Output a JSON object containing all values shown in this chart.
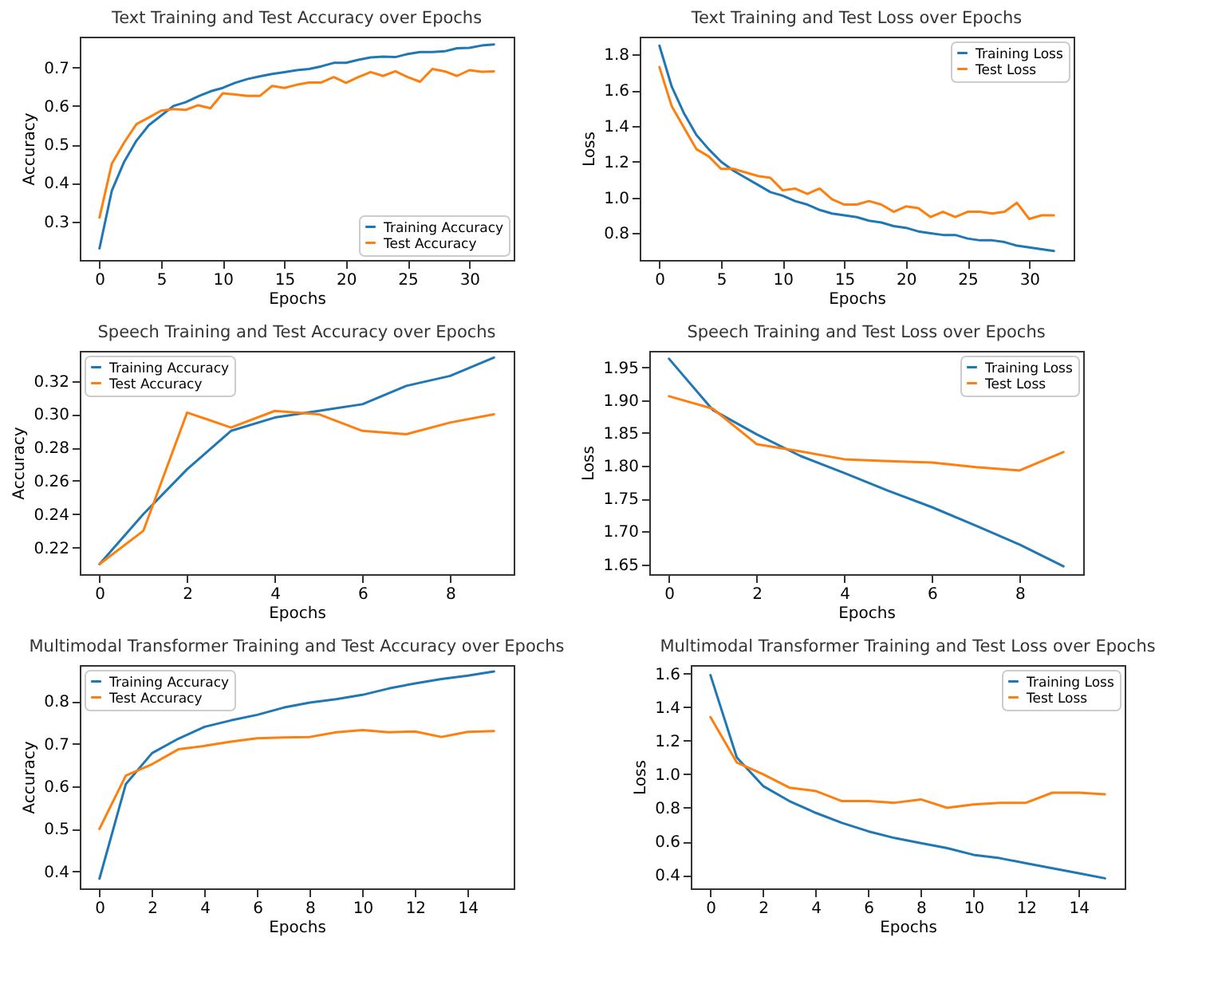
{
  "chart_data": [
    {
      "type": "line",
      "title": "Text Training and Test Accuracy over Epochs",
      "xlabel": "Epochs",
      "ylabel": "Accuracy",
      "x": [
        0,
        1,
        2,
        3,
        4,
        5,
        6,
        7,
        8,
        9,
        10,
        11,
        12,
        13,
        14,
        15,
        16,
        17,
        18,
        19,
        20,
        21,
        22,
        23,
        24,
        25,
        26,
        27,
        28,
        29,
        30,
        31,
        32
      ],
      "xlim": [
        -1.6,
        33.6
      ],
      "xticks": [
        0,
        5,
        10,
        15,
        20,
        25,
        30
      ],
      "ylim": [
        0.2,
        0.78
      ],
      "yticks": [
        0.3,
        0.4,
        0.5,
        0.6,
        0.7
      ],
      "legend": "bottom right",
      "grid": false,
      "series": [
        {
          "name": "Training Accuracy",
          "color": "#1f77b4",
          "values": [
            0.23,
            0.38,
            0.455,
            0.51,
            0.55,
            0.575,
            0.6,
            0.61,
            0.625,
            0.638,
            0.647,
            0.66,
            0.67,
            0.677,
            0.683,
            0.688,
            0.693,
            0.696,
            0.703,
            0.712,
            0.712,
            0.72,
            0.726,
            0.728,
            0.727,
            0.735,
            0.74,
            0.74,
            0.742,
            0.75,
            0.751,
            0.757,
            0.76
          ]
        },
        {
          "name": "Test Accuracy",
          "color": "#ff7f0e",
          "values": [
            0.31,
            0.45,
            0.505,
            0.553,
            0.57,
            0.588,
            0.592,
            0.59,
            0.602,
            0.594,
            0.633,
            0.63,
            0.626,
            0.626,
            0.652,
            0.647,
            0.655,
            0.661,
            0.661,
            0.675,
            0.66,
            0.675,
            0.688,
            0.678,
            0.69,
            0.675,
            0.663,
            0.696,
            0.69,
            0.678,
            0.693,
            0.689,
            0.69
          ]
        }
      ]
    },
    {
      "type": "line",
      "title": "Text Training and Test Loss over Epochs",
      "xlabel": "Epochs",
      "ylabel": "Loss",
      "x": [
        0,
        1,
        2,
        3,
        4,
        5,
        6,
        7,
        8,
        9,
        10,
        11,
        12,
        13,
        14,
        15,
        16,
        17,
        18,
        19,
        20,
        21,
        22,
        23,
        24,
        25,
        26,
        27,
        28,
        29,
        30,
        31,
        32
      ],
      "xlim": [
        -1.6,
        33.6
      ],
      "xticks": [
        0,
        5,
        10,
        15,
        20,
        25,
        30
      ],
      "ylim": [
        0.65,
        1.9
      ],
      "yticks": [
        0.8,
        {
          "value": 1,
          "label": "1.0"
        },
        1.2,
        1.4,
        1.6,
        1.8
      ],
      "legend": "top right",
      "grid": false,
      "series": [
        {
          "name": "Training Loss",
          "color": "#1f77b4",
          "values": [
            1.85,
            1.62,
            1.47,
            1.35,
            1.27,
            1.2,
            1.15,
            1.11,
            1.07,
            1.03,
            1.01,
            0.98,
            0.96,
            0.93,
            0.91,
            0.9,
            0.89,
            0.87,
            0.86,
            0.84,
            0.83,
            0.81,
            0.8,
            0.79,
            0.79,
            0.77,
            0.76,
            0.76,
            0.75,
            0.73,
            0.72,
            0.71,
            0.7
          ]
        },
        {
          "name": "Test Loss",
          "color": "#ff7f0e",
          "values": [
            1.73,
            1.51,
            1.39,
            1.27,
            1.23,
            1.16,
            1.16,
            1.14,
            1.12,
            1.11,
            1.04,
            1.05,
            1.02,
            1.05,
            0.99,
            0.96,
            0.96,
            0.98,
            0.96,
            0.92,
            0.95,
            0.94,
            0.89,
            0.92,
            0.89,
            0.92,
            0.92,
            0.91,
            0.92,
            0.97,
            0.88,
            0.9,
            0.9
          ]
        }
      ]
    },
    {
      "type": "line",
      "title": "Speech Training and Test Accuracy over Epochs",
      "xlabel": "Epochs",
      "ylabel": "Accuracy",
      "x": [
        0,
        1,
        2,
        3,
        4,
        5,
        6,
        7,
        8,
        9
      ],
      "xlim": [
        -0.45,
        9.45
      ],
      "xticks": [
        0,
        2,
        4,
        6,
        8
      ],
      "ylim": [
        0.204,
        0.338
      ],
      "yticks": [
        0.22,
        0.24,
        0.26,
        0.28,
        {
          "value": 0.3,
          "label": "0.30"
        },
        0.32
      ],
      "legend": "top left",
      "grid": false,
      "series": [
        {
          "name": "Training Accuracy",
          "color": "#1f77b4",
          "values": [
            0.21,
            0.24,
            0.267,
            0.29,
            0.298,
            0.302,
            0.306,
            0.317,
            0.323,
            0.334
          ]
        },
        {
          "name": "Test Accuracy",
          "color": "#ff7f0e",
          "values": [
            0.21,
            0.23,
            0.301,
            0.292,
            0.302,
            0.3,
            0.29,
            0.288,
            0.295,
            0.3
          ]
        }
      ]
    },
    {
      "type": "line",
      "title": "Speech Training and Test Loss over Epochs",
      "xlabel": "Epochs",
      "ylabel": "Loss",
      "x": [
        0,
        1,
        2,
        3,
        4,
        5,
        6,
        7,
        8,
        9
      ],
      "xlim": [
        -0.45,
        9.45
      ],
      "xticks": [
        0,
        2,
        4,
        6,
        8
      ],
      "ylim": [
        1.635,
        1.975
      ],
      "yticks": [
        1.65,
        {
          "value": 1.7,
          "label": "1.70"
        },
        1.75,
        {
          "value": 1.8,
          "label": "1.80"
        },
        1.85,
        {
          "value": 1.9,
          "label": "1.90"
        },
        1.95
      ],
      "legend": "top right",
      "grid": false,
      "series": [
        {
          "name": "Training Loss",
          "color": "#1f77b4",
          "values": [
            1.963,
            1.885,
            1.848,
            1.815,
            1.789,
            1.762,
            1.737,
            1.709,
            1.68,
            1.647
          ]
        },
        {
          "name": "Test Loss",
          "color": "#ff7f0e",
          "values": [
            1.906,
            1.887,
            1.833,
            1.822,
            1.81,
            1.807,
            1.805,
            1.798,
            1.793,
            1.821
          ]
        }
      ]
    },
    {
      "type": "line",
      "title": "Multimodal Transformer Training and Test Accuracy over Epochs",
      "xlabel": "Epochs",
      "ylabel": "Accuracy",
      "x": [
        0,
        1,
        2,
        3,
        4,
        5,
        6,
        7,
        8,
        9,
        10,
        11,
        12,
        13,
        14,
        15
      ],
      "xlim": [
        -0.75,
        15.75
      ],
      "xticks": [
        0,
        2,
        4,
        6,
        8,
        10,
        12,
        14
      ],
      "ylim": [
        0.36,
        0.885
      ],
      "yticks": [
        0.4,
        0.5,
        0.6,
        0.7,
        0.8
      ],
      "legend": "top left",
      "grid": false,
      "series": [
        {
          "name": "Training Accuracy",
          "color": "#1f77b4",
          "values": [
            0.383,
            0.605,
            0.678,
            0.712,
            0.74,
            0.755,
            0.768,
            0.785,
            0.797,
            0.805,
            0.815,
            0.83,
            0.842,
            0.852,
            0.86,
            0.87
          ]
        },
        {
          "name": "Test Accuracy",
          "color": "#ff7f0e",
          "values": [
            0.5,
            0.625,
            0.652,
            0.687,
            0.695,
            0.705,
            0.713,
            0.715,
            0.716,
            0.727,
            0.732,
            0.727,
            0.729,
            0.716,
            0.728,
            0.73
          ]
        }
      ]
    },
    {
      "type": "line",
      "title": "Multimodal Transformer Training and Test Loss over Epochs",
      "xlabel": "Epochs",
      "ylabel": "Loss",
      "x": [
        0,
        1,
        2,
        3,
        4,
        5,
        6,
        7,
        8,
        9,
        10,
        11,
        12,
        13,
        14,
        15
      ],
      "xlim": [
        -0.75,
        15.75
      ],
      "xticks": [
        0,
        2,
        4,
        6,
        8,
        10,
        12,
        14
      ],
      "ylim": [
        0.32,
        1.65
      ],
      "yticks": [
        0.4,
        0.6,
        0.8,
        {
          "value": 1,
          "label": "1.0"
        },
        1.2,
        1.4,
        1.6
      ],
      "legend": "top right",
      "grid": false,
      "series": [
        {
          "name": "Training Loss",
          "color": "#1f77b4",
          "values": [
            1.59,
            1.1,
            0.93,
            0.84,
            0.77,
            0.71,
            0.66,
            0.62,
            0.59,
            0.56,
            0.52,
            0.5,
            0.47,
            0.44,
            0.41,
            0.38
          ]
        },
        {
          "name": "Test Loss",
          "color": "#ff7f0e",
          "values": [
            1.34,
            1.07,
            1,
            0.92,
            0.9,
            0.84,
            0.84,
            0.83,
            0.85,
            0.8,
            0.82,
            0.83,
            0.83,
            0.89,
            0.89,
            0.88
          ]
        }
      ]
    }
  ]
}
